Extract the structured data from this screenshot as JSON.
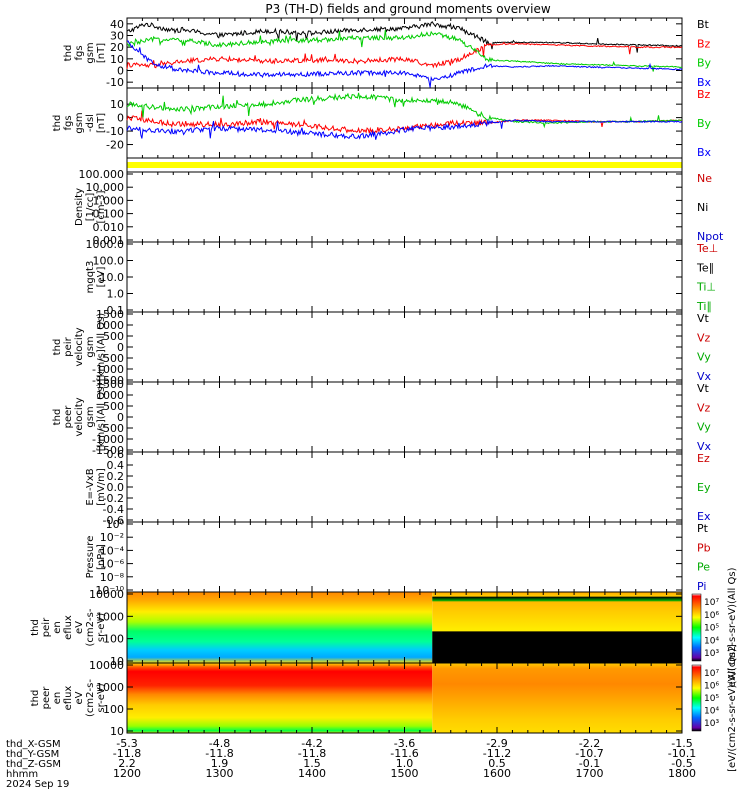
{
  "title": "P3 (TH-D) fields and ground moments overview",
  "time_axis": {
    "start": "2024-09-19T12:00",
    "end": "2024-09-19T18:00",
    "tick_times": [
      "1200",
      "1300",
      "1400",
      "1500",
      "1600",
      "1700",
      "1800"
    ],
    "row_labels": [
      "thd_X-GSM",
      "thd_Y-GSM",
      "thd_Z-GSM",
      "hhmm",
      "2024 Sep 19"
    ],
    "x_gsm": [
      "-5.3",
      "-4.8",
      "-4.2",
      "-3.6",
      "-2.9",
      "-2.2",
      "-1.5"
    ],
    "y_gsm": [
      "-11.8",
      "-11.8",
      "-11.8",
      "-11.6",
      "-11.2",
      "-10.7",
      "-10.1"
    ],
    "z_gsm": [
      "2.2",
      "1.9",
      "1.5",
      "1.0",
      "0.5",
      "-0.1",
      "-0.5"
    ]
  },
  "chart_data": [
    {
      "id": "fgs_gsm",
      "type": "line",
      "ylabel": [
        "thd",
        "fgs",
        "gsm",
        "[nT]"
      ],
      "ylim": [
        -15,
        45
      ],
      "yticks": [
        "-10",
        "0",
        "10",
        "20",
        "30",
        "40"
      ],
      "series": [
        {
          "name": "Bt",
          "color": "#000000",
          "anchors": [
            [
              0,
              33
            ],
            [
              0.2,
              40
            ],
            [
              0.5,
              34
            ],
            [
              0.6,
              35
            ],
            [
              1,
              30
            ],
            [
              1.5,
              34
            ],
            [
              2,
              32
            ],
            [
              2.5,
              35
            ],
            [
              3,
              36
            ],
            [
              3.3,
              40
            ],
            [
              3.6,
              36
            ],
            [
              3.9,
              24
            ],
            [
              4.2,
              24
            ],
            [
              4.6,
              24
            ],
            [
              5,
              23
            ],
            [
              5.5,
              22
            ],
            [
              6,
              21
            ]
          ]
        },
        {
          "name": "Bz",
          "color": "#ff0000",
          "anchors": [
            [
              0,
              5
            ],
            [
              0.3,
              4
            ],
            [
              0.6,
              8
            ],
            [
              1,
              10
            ],
            [
              1.5,
              8
            ],
            [
              2,
              9
            ],
            [
              2.5,
              8
            ],
            [
              3,
              10
            ],
            [
              3.3,
              4
            ],
            [
              3.6,
              10
            ],
            [
              3.9,
              22
            ],
            [
              4.2,
              23
            ],
            [
              4.6,
              22
            ],
            [
              5,
              21
            ],
            [
              5.5,
              20
            ],
            [
              6,
              20
            ]
          ]
        },
        {
          "name": "By",
          "color": "#00cc00",
          "anchors": [
            [
              0,
              22
            ],
            [
              0.3,
              27
            ],
            [
              0.6,
              26
            ],
            [
              1,
              22
            ],
            [
              1.5,
              25
            ],
            [
              2,
              26
            ],
            [
              2.5,
              28
            ],
            [
              3,
              28
            ],
            [
              3.3,
              32
            ],
            [
              3.6,
              26
            ],
            [
              3.9,
              9
            ],
            [
              4.2,
              8
            ],
            [
              4.6,
              6
            ],
            [
              5,
              5
            ],
            [
              5.5,
              4
            ],
            [
              6,
              3
            ]
          ]
        },
        {
          "name": "Bx",
          "color": "#0000ff",
          "anchors": [
            [
              0,
              24
            ],
            [
              0.3,
              5
            ],
            [
              0.6,
              0
            ],
            [
              1,
              -2
            ],
            [
              1.5,
              -4
            ],
            [
              2,
              -3
            ],
            [
              2.5,
              -2
            ],
            [
              3,
              -2
            ],
            [
              3.3,
              -8
            ],
            [
              3.6,
              -2
            ],
            [
              3.9,
              4
            ],
            [
              4.2,
              3
            ],
            [
              4.6,
              4
            ],
            [
              5,
              3
            ],
            [
              5.5,
              2
            ],
            [
              6,
              1
            ]
          ]
        }
      ]
    },
    {
      "id": "fgs_gsm_dsl",
      "type": "line",
      "ylabel": [
        "thd",
        "fgs",
        "gsm",
        "-dsl",
        "[nT]"
      ],
      "ylim": [
        -30,
        22
      ],
      "yticks": [
        "-20",
        "-10",
        "0",
        "10"
      ],
      "series": [
        {
          "name": "Bz",
          "color": "#ff0000",
          "anchors": [
            [
              0,
              0
            ],
            [
              0.5,
              -5
            ],
            [
              1,
              -5
            ],
            [
              1.5,
              -3
            ],
            [
              2,
              -6
            ],
            [
              2.5,
              -10
            ],
            [
              3,
              -8
            ],
            [
              3.5,
              -4
            ],
            [
              3.9,
              -4
            ],
            [
              4.2,
              -2
            ],
            [
              4.6,
              -2
            ],
            [
              5,
              -3
            ],
            [
              5.5,
              -3
            ],
            [
              6,
              -2
            ]
          ]
        },
        {
          "name": "By",
          "color": "#00cc00",
          "anchors": [
            [
              0,
              10
            ],
            [
              0.5,
              6
            ],
            [
              1,
              8
            ],
            [
              1.5,
              10
            ],
            [
              2,
              14
            ],
            [
              2.5,
              16
            ],
            [
              3,
              13
            ],
            [
              3.5,
              12
            ],
            [
              3.9,
              0
            ],
            [
              4.2,
              -3
            ],
            [
              4.6,
              -4
            ],
            [
              5,
              -3
            ],
            [
              5.5,
              -3
            ],
            [
              6,
              -2
            ]
          ]
        },
        {
          "name": "Bx",
          "color": "#0000ff",
          "anchors": [
            [
              0,
              -8
            ],
            [
              0.5,
              -10
            ],
            [
              1,
              -8
            ],
            [
              1.5,
              -9
            ],
            [
              2,
              -12
            ],
            [
              2.5,
              -14
            ],
            [
              3,
              -9
            ],
            [
              3.5,
              -7
            ],
            [
              3.9,
              -4
            ],
            [
              4.2,
              -2
            ],
            [
              4.6,
              -3
            ],
            [
              5,
              -3
            ],
            [
              5.5,
              -3
            ],
            [
              6,
              -3
            ]
          ]
        }
      ]
    },
    {
      "id": "bar",
      "type": "bar",
      "color": "#ffff00"
    },
    {
      "id": "density",
      "type": "line",
      "ylabel": [
        "Density",
        "[1/cc]",
        "[cm-3]"
      ],
      "yticks": [
        "100.000",
        "10.000",
        "1.000",
        "0.100",
        "0.010",
        "0.001"
      ],
      "log": true,
      "series": [
        {
          "name": "Ne",
          "color": "#cc0000"
        },
        {
          "name": "Ni",
          "color": "#000000"
        },
        {
          "name": "Npot",
          "color": "#0000cc"
        }
      ]
    },
    {
      "id": "temp",
      "type": "line",
      "ylabel": [
        "mgqt3",
        "[eV]"
      ],
      "yticks": [
        "1000.0",
        "100.0",
        "10.0",
        "1.0",
        "0.1"
      ],
      "log": true,
      "series": [
        {
          "name": "Te⊥",
          "color": "#cc0000"
        },
        {
          "name": "Te∥",
          "color": "#000000"
        },
        {
          "name": "Ti⊥",
          "color": "#00aa00"
        },
        {
          "name": "Ti∥",
          "color": "#00aa00"
        }
      ]
    },
    {
      "id": "peir_vel",
      "type": "line",
      "ylabel": [
        "thd",
        "peir",
        "velocity",
        "gsm",
        "[km/s](All Qs)"
      ],
      "yticks": [
        "1500",
        "1000",
        "500",
        "0",
        "-500",
        "-1000",
        "-1500"
      ],
      "series": [
        {
          "name": "Vt",
          "color": "#000000"
        },
        {
          "name": "Vz",
          "color": "#cc0000"
        },
        {
          "name": "Vy",
          "color": "#00aa00"
        },
        {
          "name": "Vx",
          "color": "#0000cc"
        }
      ]
    },
    {
      "id": "peer_vel",
      "type": "line",
      "ylabel": [
        "thd",
        "peer",
        "velocity",
        "gsm",
        "[km/s](All Qs)"
      ],
      "yticks": [
        "1500",
        "1000",
        "500",
        "0",
        "-500",
        "-1000",
        "-1500"
      ],
      "series": [
        {
          "name": "Vt",
          "color": "#000000"
        },
        {
          "name": "Vz",
          "color": "#cc0000"
        },
        {
          "name": "Vy",
          "color": "#00aa00"
        },
        {
          "name": "Vx",
          "color": "#0000cc"
        }
      ]
    },
    {
      "id": "efield",
      "type": "line",
      "ylabel": [
        "E=-VxB",
        "[mV/m]"
      ],
      "yticks": [
        "0.6",
        "0.4",
        "0.2",
        "0.0",
        "-0.2",
        "-0.4",
        "-0.6"
      ],
      "series": [
        {
          "name": "Ez",
          "color": "#cc0000"
        },
        {
          "name": "Ey",
          "color": "#00aa00"
        },
        {
          "name": "Ex",
          "color": "#0000cc"
        }
      ]
    },
    {
      "id": "pressure",
      "type": "line",
      "ylabel": [
        "Pressure",
        "[nPa]"
      ],
      "yticks": [
        "10⁰",
        "10⁻²",
        "10⁻⁴",
        "10⁻⁶",
        "10⁻⁸",
        "10⁻¹⁰"
      ],
      "log": true,
      "series": [
        {
          "name": "Pt",
          "color": "#000000"
        },
        {
          "name": "Pb",
          "color": "#cc0000"
        },
        {
          "name": "Pe",
          "color": "#00aa00"
        },
        {
          "name": "Pi",
          "color": "#0000cc"
        }
      ]
    },
    {
      "id": "peir_spec",
      "type": "heatmap",
      "ylabel": [
        "thd",
        "peir",
        "en",
        "eflux",
        "eV",
        "(cm2-s-",
        "sr-eV)"
      ],
      "yticks": [
        "10000",
        "1000",
        "100",
        "10"
      ],
      "colorbar_ticks": [
        "10⁷",
        "10⁶",
        "10⁵",
        "10⁴",
        "10³"
      ],
      "colorbar_label": "eV/(cm2-s-sr-eV)(All Qs)",
      "data_end_time": "15:18",
      "after_boundary": "no data"
    },
    {
      "id": "peer_spec",
      "type": "heatmap",
      "ylabel": [
        "thd",
        "peer",
        "en",
        "eflux",
        "eV",
        "(cm2-s-",
        "sr-eV)"
      ],
      "yticks": [
        "10000",
        "1000",
        "100",
        "10"
      ],
      "colorbar_ticks": [
        "10⁷",
        "10⁶",
        "10⁵",
        "10⁴",
        "10³"
      ],
      "colorbar_label": "[eV/(cm2-s-sr-eV)(All Qs)]",
      "change_time": "15:18"
    }
  ]
}
